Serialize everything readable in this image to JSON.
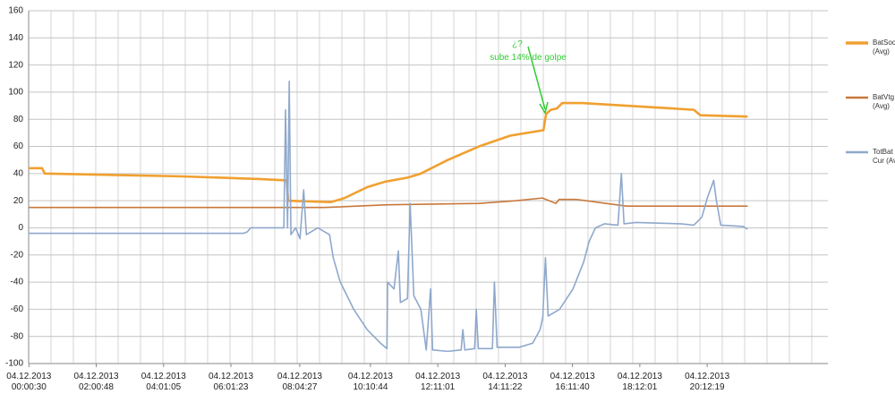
{
  "chart_data": {
    "type": "line",
    "xlim": [
      0,
      23.8
    ],
    "ylim": [
      -100,
      160
    ],
    "yticks": [
      -100,
      -80,
      -60,
      -40,
      -20,
      0,
      20,
      40,
      60,
      80,
      100,
      120,
      140,
      160
    ],
    "xticks": [
      {
        "value": 0.008,
        "label": "04.12.2013 00:00:30"
      },
      {
        "value": 2.013,
        "label": "04.12.2013 02:00:48"
      },
      {
        "value": 4.018,
        "label": "04.12.2013 04:01:05"
      },
      {
        "value": 6.023,
        "label": "04.12.2013 06:01:23"
      },
      {
        "value": 8.074,
        "label": "04.12.2013 08:04:27"
      },
      {
        "value": 10.179,
        "label": "04.12.2013 10:10:44"
      },
      {
        "value": 12.184,
        "label": "04.12.2013 12:11:01"
      },
      {
        "value": 14.189,
        "label": "04.12.2013 14:11:22"
      },
      {
        "value": 16.194,
        "label": "04.12.2013 16:11:40"
      },
      {
        "value": 18.2,
        "label": "04.12.2013 18:12:01"
      },
      {
        "value": 20.205,
        "label": "04.12.2013 20:12:19"
      }
    ],
    "grid": true,
    "legend": "right",
    "annotations": [
      "¿?",
      "sube 14% de golpe"
    ],
    "series": [
      {
        "name": "BatSoc (Avg)",
        "color": "#f0a030",
        "width": 2.6,
        "x": [
          0,
          0.4,
          0.48,
          4.48,
          6.88,
          7.68,
          7.73,
          9.01,
          9.41,
          10.08,
          10.61,
          11.28,
          11.68,
          12.48,
          13.41,
          14.35,
          15.33,
          15.41,
          15.55,
          15.73,
          15.89,
          16.48,
          17.81,
          19.15,
          19.81,
          20.0,
          21.41
        ],
        "values": [
          44,
          44,
          40,
          38,
          36,
          35,
          20,
          19,
          22,
          30,
          34,
          37,
          40,
          50,
          60,
          68,
          72,
          84,
          87,
          88,
          92,
          92,
          90,
          88,
          87,
          83,
          82
        ]
      },
      {
        "name": "BatVtg (Avg)",
        "color": "#c8783a",
        "width": 1.6,
        "x": [
          0,
          8.8,
          10.7,
          13.4,
          14.5,
          15.3,
          15.7,
          15.8,
          16.3,
          17.2,
          17.8,
          21.41
        ],
        "values": [
          15,
          15,
          17,
          18,
          20,
          22,
          18,
          21,
          21,
          18,
          16,
          16
        ]
      },
      {
        "name": "TotBat Cur (Avg)",
        "color": "#8fa8cc",
        "width": 1.6,
        "x": [
          0,
          6.4,
          6.51,
          6.61,
          7.6,
          7.65,
          7.71,
          7.76,
          7.81,
          7.95,
          8.08,
          8.19,
          8.27,
          8.61,
          8.96,
          9.07,
          9.28,
          9.68,
          10.08,
          10.48,
          10.67,
          10.69,
          10.88,
          11.01,
          11.07,
          11.28,
          11.36,
          11.47,
          11.68,
          11.84,
          11.97,
          12.03,
          12.48,
          12.88,
          12.93,
          12.99,
          13.28,
          13.33,
          13.39,
          13.81,
          13.87,
          13.95,
          14.61,
          15.01,
          15.23,
          15.31,
          15.39,
          15.47,
          15.81,
          16.21,
          16.53,
          16.69,
          16.88,
          17.15,
          17.55,
          17.65,
          17.73,
          18.08,
          19.41,
          19.81,
          20.05,
          20.21,
          20.4,
          20.48,
          20.61,
          21.28,
          21.41
        ],
        "values": [
          -4,
          -4,
          -3,
          0,
          0,
          87,
          0,
          108,
          -5,
          0,
          -8,
          28,
          -5,
          0,
          -5,
          -22,
          -40,
          -60,
          -75,
          -85,
          -89,
          -40,
          -45,
          -17,
          -55,
          -52,
          18,
          -50,
          -60,
          -90,
          -45,
          -90,
          -91,
          -90,
          -75,
          -90,
          -89,
          -60,
          -89,
          -89,
          -40,
          -88,
          -88,
          -85,
          -75,
          -66,
          -22,
          -65,
          -60,
          -45,
          -25,
          -10,
          0,
          3,
          2,
          40,
          3,
          4,
          3,
          2,
          8,
          22,
          35,
          20,
          2,
          1,
          -1
        ]
      }
    ]
  }
}
